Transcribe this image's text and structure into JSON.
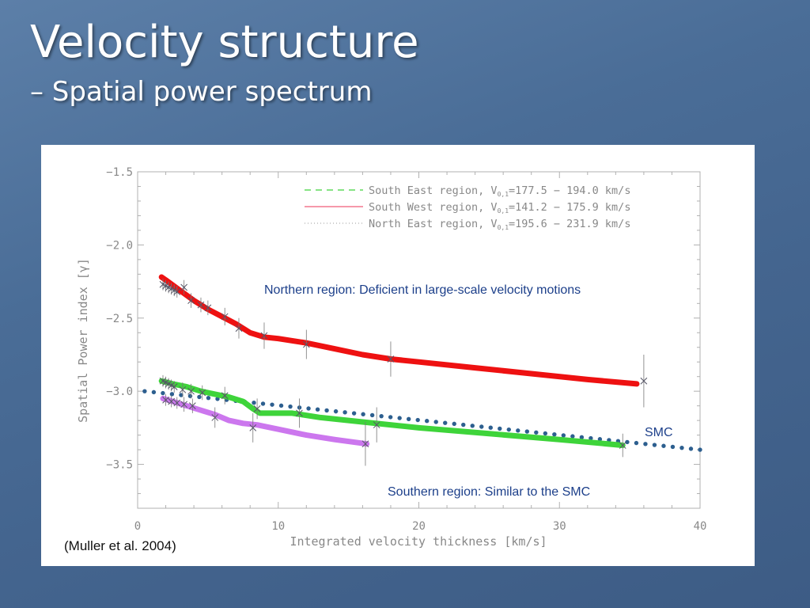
{
  "slide": {
    "title": "Velocity structure",
    "subtitle": "– Spatial power spectrum",
    "citation": "(Muller et al. 2004)"
  },
  "colors": {
    "south_east": "#3ed43a",
    "south_west": "#cc77ee",
    "north_east": "#ee1111",
    "smc": "#2d5f8f",
    "annotation": "#1c3f8a"
  },
  "annotations": {
    "northern": "Northern region: Deficient in large-scale velocity motions",
    "southern": "Southern region: Similar to the SMC",
    "smc": "SMC"
  },
  "chart_data": {
    "type": "line",
    "xlabel": "Integrated velocity thickness [km/s]",
    "ylabel": "Spatial Power index [γ]",
    "xlim": [
      0,
      40
    ],
    "ylim": [
      -3.8,
      -1.5
    ],
    "xticks": [
      0,
      10,
      20,
      30,
      40
    ],
    "yticks": [
      -1.5,
      -2.0,
      -2.5,
      -3.0,
      -3.5
    ],
    "xtick_labels": [
      "0",
      "10",
      "20",
      "30",
      "40"
    ],
    "ytick_labels": [
      "−1.5",
      "−2.0",
      "−2.5",
      "−3.0",
      "−3.5"
    ],
    "legend": {
      "placement": "top-right",
      "entries": [
        {
          "prefix": "South East region, V",
          "sub": "0,1",
          "suffix": "=177.5 − 194.0 km/s",
          "style": "dashed"
        },
        {
          "prefix": "South West region, V",
          "sub": "0,1",
          "suffix": "=141.2 − 175.9 km/s",
          "style": "solid"
        },
        {
          "prefix": "North East region, V",
          "sub": "0,1",
          "suffix": "=195.6 − 231.9 km/s",
          "style": "dotted"
        }
      ]
    },
    "series": [
      {
        "name": "North East region",
        "color": "#ee1111",
        "x": [
          1.7,
          2.0,
          3.0,
          4.0,
          5.0,
          6.0,
          7.0,
          8.0,
          9.0,
          10.0,
          12.0,
          14.0,
          16.0,
          18.0,
          20.0,
          24.0,
          28.0,
          32.0,
          35.5
        ],
        "y": [
          -2.22,
          -2.24,
          -2.31,
          -2.38,
          -2.44,
          -2.49,
          -2.54,
          -2.6,
          -2.63,
          -2.64,
          -2.67,
          -2.71,
          -2.75,
          -2.78,
          -2.8,
          -2.84,
          -2.88,
          -2.92,
          -2.95
        ],
        "errors": [
          {
            "x": 1.8,
            "y": -2.27,
            "err": 0.04
          },
          {
            "x": 2.0,
            "y": -2.28,
            "err": 0.04
          },
          {
            "x": 2.2,
            "y": -2.29,
            "err": 0.04
          },
          {
            "x": 2.4,
            "y": -2.3,
            "err": 0.04
          },
          {
            "x": 2.6,
            "y": -2.31,
            "err": 0.04
          },
          {
            "x": 2.8,
            "y": -2.32,
            "err": 0.04
          },
          {
            "x": 3.3,
            "y": -2.29,
            "err": 0.05
          },
          {
            "x": 3.8,
            "y": -2.38,
            "err": 0.05
          },
          {
            "x": 4.5,
            "y": -2.41,
            "err": 0.05
          },
          {
            "x": 5.0,
            "y": -2.43,
            "err": 0.05
          },
          {
            "x": 6.2,
            "y": -2.49,
            "err": 0.06
          },
          {
            "x": 7.2,
            "y": -2.57,
            "err": 0.07
          },
          {
            "x": 9.0,
            "y": -2.62,
            "err": 0.09
          },
          {
            "x": 12.0,
            "y": -2.68,
            "err": 0.1
          },
          {
            "x": 18.0,
            "y": -2.78,
            "err": 0.12
          },
          {
            "x": 36.0,
            "y": -2.93,
            "err": 0.18
          }
        ]
      },
      {
        "name": "South East region",
        "color": "#3ed43a",
        "x": [
          1.7,
          2.5,
          3.5,
          4.5,
          5.5,
          6.5,
          7.5,
          8.2,
          8.7,
          9.5,
          11.0,
          13.0,
          16.0,
          20.0,
          25.0,
          30.0,
          34.5
        ],
        "y": [
          -2.93,
          -2.95,
          -2.97,
          -3.0,
          -3.02,
          -3.04,
          -3.07,
          -3.12,
          -3.15,
          -3.15,
          -3.15,
          -3.18,
          -3.21,
          -3.25,
          -3.29,
          -3.33,
          -3.37
        ],
        "errors": [
          {
            "x": 1.8,
            "y": -2.93,
            "err": 0.04
          },
          {
            "x": 2.0,
            "y": -2.94,
            "err": 0.04
          },
          {
            "x": 2.2,
            "y": -2.95,
            "err": 0.04
          },
          {
            "x": 2.4,
            "y": -2.96,
            "err": 0.04
          },
          {
            "x": 2.6,
            "y": -2.97,
            "err": 0.04
          },
          {
            "x": 3.2,
            "y": -2.99,
            "err": 0.05
          },
          {
            "x": 3.8,
            "y": -3.0,
            "err": 0.05
          },
          {
            "x": 4.6,
            "y": -3.01,
            "err": 0.05
          },
          {
            "x": 6.2,
            "y": -3.03,
            "err": 0.06
          },
          {
            "x": 8.5,
            "y": -3.12,
            "err": 0.07
          },
          {
            "x": 11.5,
            "y": -3.15,
            "err": 0.1
          },
          {
            "x": 17.0,
            "y": -3.23,
            "err": 0.12
          },
          {
            "x": 34.5,
            "y": -3.37,
            "err": 0.08
          }
        ]
      },
      {
        "name": "South West region",
        "color": "#cc77ee",
        "x": [
          1.8,
          2.5,
          3.5,
          4.5,
          5.5,
          6.5,
          7.5,
          8.5,
          10.0,
          12.0,
          14.0,
          16.3
        ],
        "y": [
          -3.05,
          -3.07,
          -3.1,
          -3.13,
          -3.16,
          -3.2,
          -3.22,
          -3.23,
          -3.26,
          -3.3,
          -3.33,
          -3.36
        ],
        "errors": [
          {
            "x": 2.0,
            "y": -3.06,
            "err": 0.04
          },
          {
            "x": 2.4,
            "y": -3.07,
            "err": 0.04
          },
          {
            "x": 2.8,
            "y": -3.08,
            "err": 0.04
          },
          {
            "x": 3.3,
            "y": -3.09,
            "err": 0.05
          },
          {
            "x": 3.9,
            "y": -3.1,
            "err": 0.05
          },
          {
            "x": 5.5,
            "y": -3.18,
            "err": 0.07
          },
          {
            "x": 8.2,
            "y": -3.25,
            "err": 0.1
          },
          {
            "x": 16.2,
            "y": -3.36,
            "err": 0.15
          }
        ]
      },
      {
        "name": "SMC",
        "color": "#2d5f8f",
        "x": [
          0.5,
          40.0
        ],
        "y": [
          -3.0,
          -3.4
        ]
      }
    ]
  }
}
